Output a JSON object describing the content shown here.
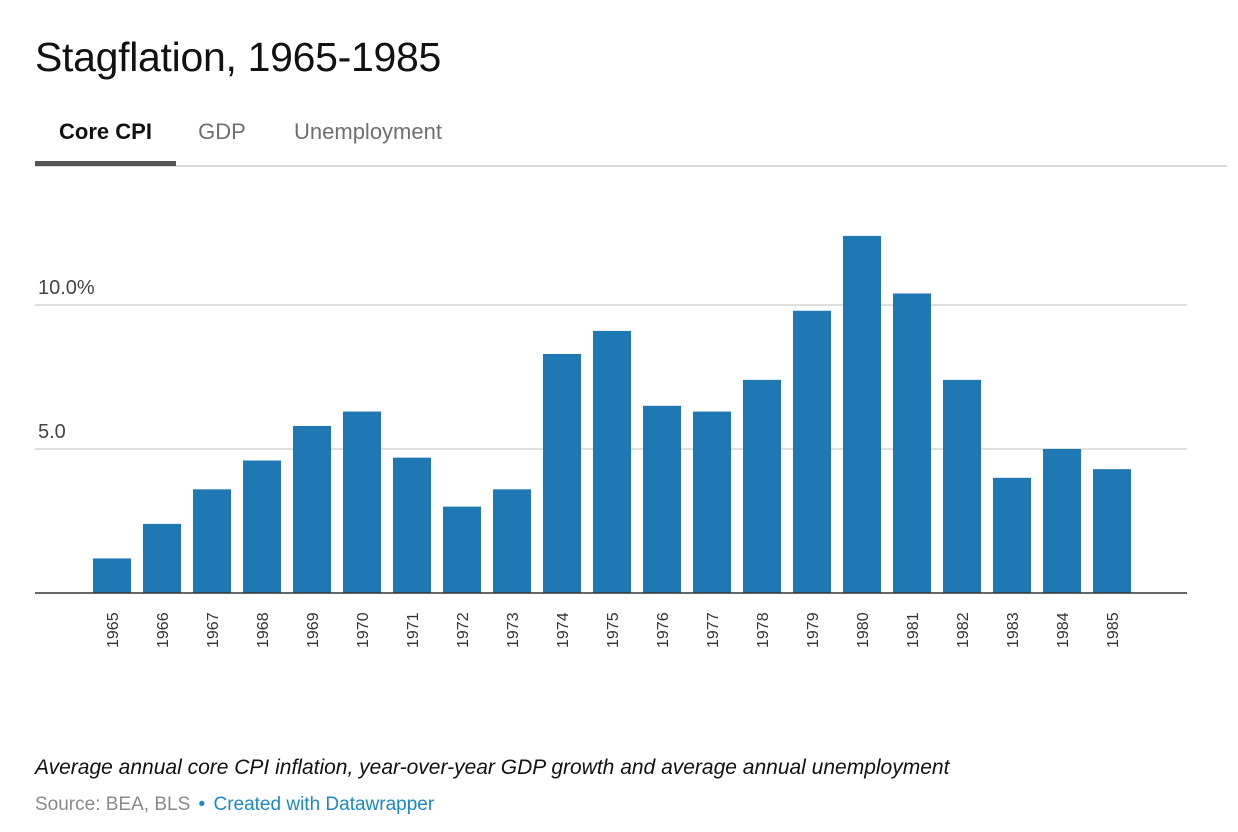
{
  "title": "Stagflation, 1965-1985",
  "tabs": [
    {
      "label": "Core CPI",
      "active": true
    },
    {
      "label": "GDP",
      "active": false
    },
    {
      "label": "Unemployment",
      "active": false
    }
  ],
  "chart_data": {
    "type": "bar",
    "categories": [
      "1965",
      "1966",
      "1967",
      "1968",
      "1969",
      "1970",
      "1971",
      "1972",
      "1973",
      "1974",
      "1975",
      "1976",
      "1977",
      "1978",
      "1979",
      "1980",
      "1981",
      "1982",
      "1983",
      "1984",
      "1985"
    ],
    "series": [
      {
        "values": [
          1.2,
          2.4,
          3.6,
          4.6,
          5.8,
          6.3,
          4.7,
          3.0,
          3.6,
          8.3,
          9.1,
          6.5,
          6.3,
          7.4,
          9.8,
          12.4,
          10.4,
          7.4,
          4.0,
          5.0,
          4.3
        ]
      }
    ],
    "ylim": [
      0,
      13.5
    ],
    "yticks": [
      {
        "value": 5,
        "label": "5.0"
      },
      {
        "value": 10,
        "label": "10.0%"
      }
    ],
    "grid": true,
    "bar_color": "#1f77b4"
  },
  "caption": "Average annual core CPI inflation, year-over-year GDP growth and average annual unemployment",
  "source": {
    "label": "Source: BEA, BLS",
    "separator": "•",
    "credit": "Created with Datawrapper"
  }
}
